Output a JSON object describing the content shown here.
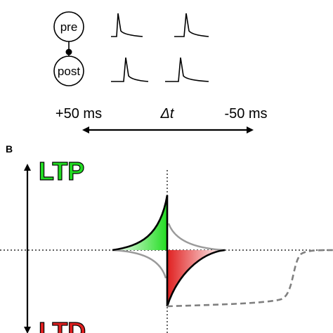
{
  "panel_a": {
    "pre_label": "pre",
    "post_label": "post",
    "left_delay": "+50 ms",
    "delta_symbol": "Δt",
    "right_delay": "-50 ms"
  },
  "panel_b": {
    "panel_letter": "B",
    "ltp_label": "LTP",
    "ltd_label": "LTD"
  },
  "colors": {
    "ltp_green": "#22dd22",
    "ltd_red": "#e02020",
    "line": "#000000",
    "dashed_gray": "#808080",
    "solid_gray": "#9a9a9a"
  }
}
